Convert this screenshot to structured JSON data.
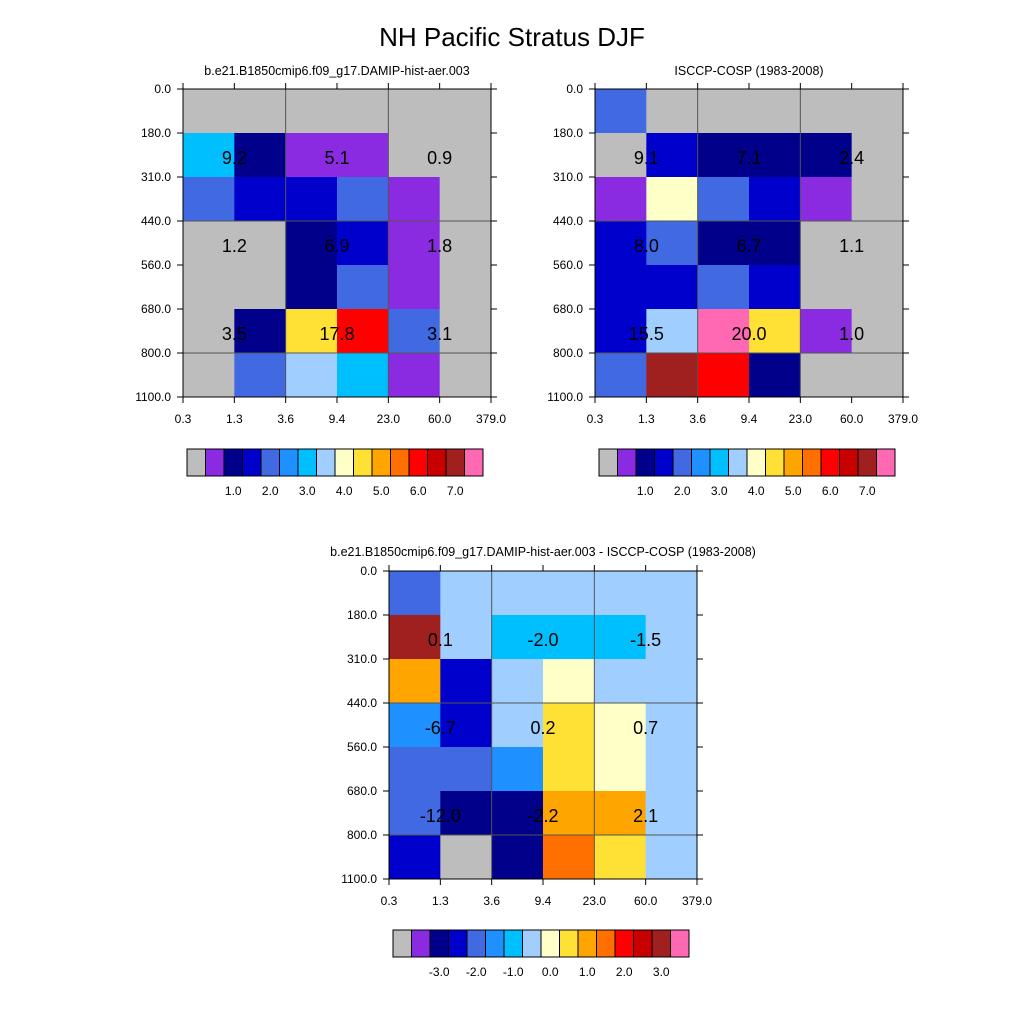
{
  "title": "NH Pacific Stratus DJF",
  "colors": {
    "main_palette": [
      "#bdbdbd",
      "#8a2be2",
      "#00008b",
      "#0000cd",
      "#4169e1",
      "#1e90ff",
      "#00bfff",
      "#a0cfff",
      "#ffffc8",
      "#ffe135",
      "#ffa500",
      "#ff7000",
      "#ff0000",
      "#c80000",
      "#a02020",
      "#ff69b4"
    ],
    "diff_palette": [
      "#bdbdbd",
      "#8a2be2",
      "#00008b",
      "#0000cd",
      "#4169e1",
      "#1e90ff",
      "#00bfff",
      "#a0cfff",
      "#ffffc8",
      "#ffe135",
      "#ffa500",
      "#ff7000",
      "#ff0000",
      "#c80000",
      "#a02020",
      "#ff69b4"
    ]
  },
  "chart_data": [
    {
      "type": "heatmap",
      "title": "b.e21.B1850cmip6.f09_g17.DAMIP-hist-aer.003",
      "x_ticks": [
        "0.3",
        "1.3",
        "3.6",
        "9.4",
        "23.0",
        "60.0",
        "379.0"
      ],
      "y_ticks": [
        "0.0",
        "180.0",
        "310.0",
        "440.0",
        "560.0",
        "680.0",
        "800.0",
        "1100.0"
      ],
      "grid": true,
      "cells": [
        [
          0,
          0,
          0,
          0,
          0,
          0
        ],
        [
          6,
          2,
          1,
          1,
          0,
          0
        ],
        [
          4,
          3,
          3,
          4,
          1,
          0
        ],
        [
          0,
          0,
          2,
          3,
          1,
          0
        ],
        [
          0,
          0,
          2,
          4,
          1,
          0
        ],
        [
          0,
          2,
          9,
          12,
          4,
          0
        ],
        [
          0,
          4,
          7,
          6,
          1,
          0
        ]
      ],
      "annotations": [
        {
          "col": 0,
          "row": 1,
          "text": "9.2"
        },
        {
          "col": 2,
          "row": 1,
          "text": "5.1"
        },
        {
          "col": 4,
          "row": 1,
          "text": "0.9"
        },
        {
          "col": 0,
          "row": 3,
          "text": "1.2"
        },
        {
          "col": 2,
          "row": 3,
          "text": "6.9"
        },
        {
          "col": 4,
          "row": 3,
          "text": "1.8"
        },
        {
          "col": 0,
          "row": 5,
          "text": "3.5"
        },
        {
          "col": 2,
          "row": 5,
          "text": "17.8"
        },
        {
          "col": 4,
          "row": 5,
          "text": "3.1"
        }
      ],
      "colorbar_labels": [
        "1.0",
        "2.0",
        "3.0",
        "4.0",
        "5.0",
        "6.0",
        "7.0"
      ]
    },
    {
      "type": "heatmap",
      "title": "ISCCP-COSP (1983-2008)",
      "x_ticks": [
        "0.3",
        "1.3",
        "3.6",
        "9.4",
        "23.0",
        "60.0",
        "379.0"
      ],
      "y_ticks": [
        "0.0",
        "180.0",
        "310.0",
        "440.0",
        "560.0",
        "680.0",
        "800.0",
        "1100.0"
      ],
      "grid": true,
      "cells": [
        [
          4,
          0,
          0,
          0,
          0,
          0
        ],
        [
          0,
          3,
          2,
          2,
          2,
          0
        ],
        [
          1,
          8,
          4,
          3,
          1,
          0
        ],
        [
          3,
          4,
          2,
          2,
          0,
          0
        ],
        [
          3,
          3,
          4,
          3,
          0,
          0
        ],
        [
          3,
          7,
          15,
          9,
          1,
          0
        ],
        [
          4,
          14,
          12,
          2,
          0,
          0
        ]
      ],
      "annotations": [
        {
          "col": 0,
          "row": 1,
          "text": "9.1"
        },
        {
          "col": 2,
          "row": 1,
          "text": "7.1"
        },
        {
          "col": 4,
          "row": 1,
          "text": "2.4"
        },
        {
          "col": 0,
          "row": 3,
          "text": "8.0"
        },
        {
          "col": 2,
          "row": 3,
          "text": "6.7"
        },
        {
          "col": 4,
          "row": 3,
          "text": "1.1"
        },
        {
          "col": 0,
          "row": 5,
          "text": "15.5"
        },
        {
          "col": 2,
          "row": 5,
          "text": "20.0"
        },
        {
          "col": 4,
          "row": 5,
          "text": "1.0"
        }
      ],
      "colorbar_labels": [
        "1.0",
        "2.0",
        "3.0",
        "4.0",
        "5.0",
        "6.0",
        "7.0"
      ]
    },
    {
      "type": "heatmap",
      "title": "b.e21.B1850cmip6.f09_g17.DAMIP-hist-aer.003 - ISCCP-COSP (1983-2008)",
      "x_ticks": [
        "0.3",
        "1.3",
        "3.6",
        "9.4",
        "23.0",
        "60.0",
        "379.0"
      ],
      "y_ticks": [
        "0.0",
        "180.0",
        "310.0",
        "440.0",
        "560.0",
        "680.0",
        "800.0",
        "1100.0"
      ],
      "grid": true,
      "cells": [
        [
          4,
          7,
          7,
          7,
          7,
          7
        ],
        [
          14,
          7,
          6,
          6,
          6,
          7
        ],
        [
          10,
          3,
          7,
          8,
          7,
          7
        ],
        [
          5,
          3,
          7,
          9,
          8,
          7
        ],
        [
          4,
          4,
          5,
          9,
          8,
          7
        ],
        [
          4,
          2,
          2,
          10,
          10,
          7
        ],
        [
          3,
          0,
          2,
          11,
          9,
          7
        ]
      ],
      "annotations": [
        {
          "col": 0,
          "row": 1,
          "text": "0.1"
        },
        {
          "col": 2,
          "row": 1,
          "text": "-2.0"
        },
        {
          "col": 4,
          "row": 1,
          "text": "-1.5"
        },
        {
          "col": 0,
          "row": 3,
          "text": "-6.7"
        },
        {
          "col": 2,
          "row": 3,
          "text": "0.2"
        },
        {
          "col": 4,
          "row": 3,
          "text": "0.7"
        },
        {
          "col": 0,
          "row": 5,
          "text": "-12.0"
        },
        {
          "col": 2,
          "row": 5,
          "text": "-2.2"
        },
        {
          "col": 4,
          "row": 5,
          "text": "2.1"
        }
      ],
      "colorbar_labels": [
        "-3.0",
        "-2.0",
        "-1.0",
        "0.0",
        "1.0",
        "2.0",
        "3.0"
      ]
    }
  ]
}
